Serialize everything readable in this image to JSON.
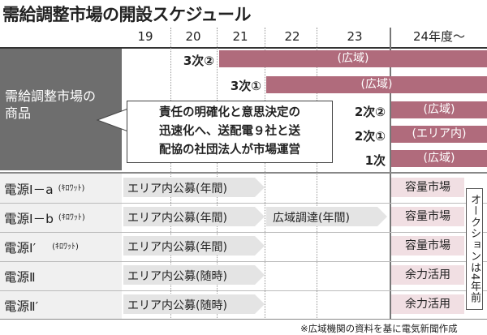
{
  "title": "需給調整市場の開設スケジュール",
  "years": [
    "19",
    "20",
    "21",
    "22",
    "23",
    "24年度～"
  ],
  "products_label": "需給調整市場の商品",
  "phases": [
    {
      "label": "3次②",
      "bar": "(広域)"
    },
    {
      "label": "3次①",
      "bar": "(広域)"
    },
    {
      "label": "2次②",
      "bar": "(広域)"
    },
    {
      "label": "2次①",
      "bar": "(エリア内)"
    },
    {
      "label": "1次",
      "bar": "(広域)"
    }
  ],
  "callout": [
    "責任の明確化と意思決定の",
    "迅速化へ、送配電９社と送",
    "配協の社団法人が市場運営"
  ],
  "sources": [
    {
      "name": "電源Ⅰ－a",
      "note": "(ｷﾛﾜｯﾄ)",
      "procure": "エリア内公募(年間)",
      "extra": "",
      "market": "容量市場"
    },
    {
      "name": "電源Ⅰ－b",
      "note": "(ｷﾛﾜｯﾄ)",
      "procure": "エリア内公募(年間)",
      "extra": "広域調達(年間)",
      "market": "容量市場"
    },
    {
      "name": "電源Ⅰ′",
      "note": "(ｷﾛﾜｯﾄ)",
      "procure": "エリア内公募(年間)",
      "extra": "",
      "market": "容量市場"
    },
    {
      "name": "電源Ⅱ",
      "note": "",
      "procure": "エリア内公募(随時)",
      "extra": "",
      "market": "余力活用"
    },
    {
      "name": "電源Ⅱ′",
      "note": "",
      "procure": "エリア内公募(随時)",
      "extra": "",
      "market": "余力活用"
    }
  ],
  "auction_note": "オークションは4年前",
  "footnote": "※広域機関の資料を基に電気新聞作成",
  "colors": {
    "bar": "#b06b7c",
    "bar_light": "#f1dfe3",
    "label_bg": "#6e6e6e"
  }
}
